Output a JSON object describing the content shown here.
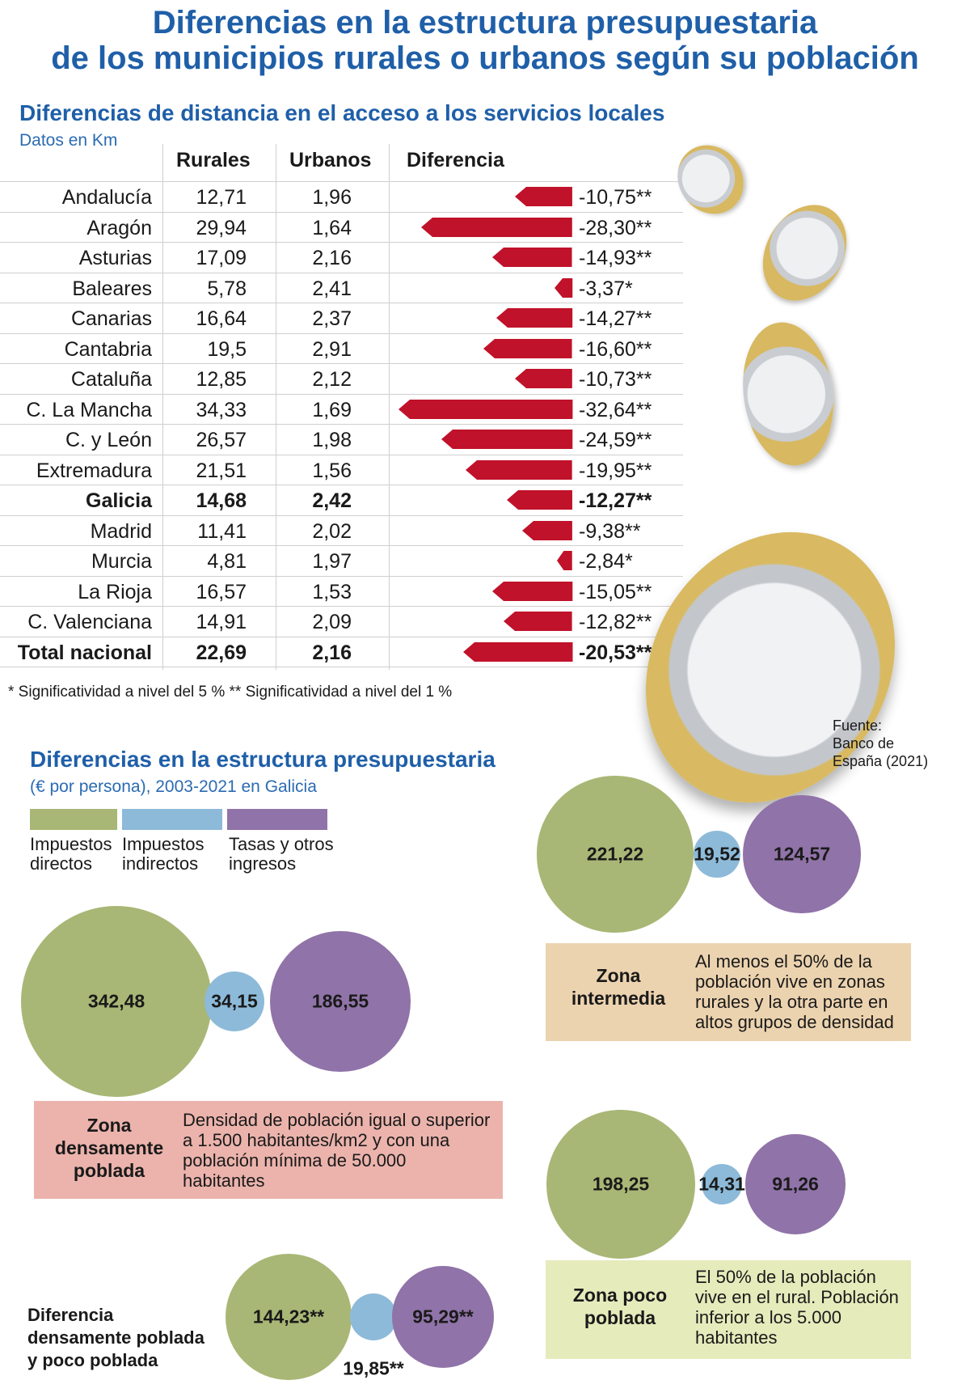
{
  "title_line1": "Diferencias en la estructura presupuestaria",
  "title_line2": "de los municipios rurales o urbanos según su población",
  "section1": {
    "title": "Diferencias de distancia en el acceso a los servicios locales",
    "subtitle": "Datos en Km",
    "col_rurales": "Rurales",
    "col_urbanos": "Urbanos",
    "col_diferencia": "Diferencia",
    "note": "* Significatividad a nivel del 5 %  ** Significatividad a nivel del  1 %"
  },
  "source": "Fuente:\nBanco de\nEspaña (2021)",
  "section2": {
    "title": "Diferencias en la estructura presupuestaria",
    "subtitle": "(€ por persona), 2003-2021 en Galicia",
    "legend": [
      {
        "label": "Impuestos\ndirectos",
        "color": "#a8b775"
      },
      {
        "label": "Impuestos\nindirectos",
        "color": "#8dbad9"
      },
      {
        "label": "Tasas y otros\ningresos",
        "color": "#9073a8"
      }
    ]
  },
  "zones": {
    "densa": {
      "label": "Zona\ndensamente\npoblada",
      "desc": "Densidad de población igual o superior\na 1.500 habitantes/km2 y con una\npoblación mínima de 50.000\nhabitantes"
    },
    "intermedia": {
      "label": "Zona\nintermedia",
      "desc": "Al menos el 50% de la\npoblación vive en zonas\nrurales y la otra parte en\naltos grupos de densidad"
    },
    "poco": {
      "label": "Zona poco\npoblada",
      "desc": "El 50% de la población\nvive en el rural. Población\ninferior a los 5.000\nhabitantes"
    },
    "diferencia": {
      "label": "Diferencia\ndensamente poblada\ny poco poblada"
    }
  },
  "colors": {
    "title_blue": "#1f5fa8",
    "bar_red": "#c0122a",
    "olive": "#a8b775",
    "lightblue": "#8dbad9",
    "purple": "#9073a8",
    "box_pink": "#ebb3ac",
    "box_tan": "#ecd3af",
    "box_lime": "#e6ebbb"
  },
  "chart_data": [
    {
      "type": "table",
      "title": "Diferencias de distancia en el acceso a los servicios locales",
      "unit": "Km",
      "columns": [
        "Rurales",
        "Urbanos",
        "Diferencia"
      ],
      "rows": [
        {
          "region": "Andalucía",
          "rurales": "12,71",
          "urbanos": "1,96",
          "diferencia": "-10,75**",
          "value": -10.75
        },
        {
          "region": "Aragón",
          "rurales": "29,94",
          "urbanos": "1,64",
          "diferencia": "-28,30**",
          "value": -28.3
        },
        {
          "region": "Asturias",
          "rurales": "17,09",
          "urbanos": "2,16",
          "diferencia": "-14,93**",
          "value": -14.93
        },
        {
          "region": "Baleares",
          "rurales": "5,78",
          "urbanos": "2,41",
          "diferencia": "-3,37*",
          "value": -3.37
        },
        {
          "region": "Canarias",
          "rurales": "16,64",
          "urbanos": "2,37",
          "diferencia": "-14,27**",
          "value": -14.27
        },
        {
          "region": "Cantabria",
          "rurales": "19,5",
          "urbanos": "2,91",
          "diferencia": "-16,60**",
          "value": -16.6
        },
        {
          "region": "Cataluña",
          "rurales": "12,85",
          "urbanos": "2,12",
          "diferencia": "-10,73**",
          "value": -10.73
        },
        {
          "region": "C. La Mancha",
          "rurales": "34,33",
          "urbanos": "1,69",
          "diferencia": "-32,64**",
          "value": -32.64
        },
        {
          "region": "C.  y León",
          "rurales": "26,57",
          "urbanos": "1,98",
          "diferencia": "-24,59**",
          "value": -24.59
        },
        {
          "region": "Extremadura",
          "rurales": "21,51",
          "urbanos": "1,56",
          "diferencia": "-19,95**",
          "value": -19.95
        },
        {
          "region": "Galicia",
          "rurales": "14,68",
          "urbanos": "2,42",
          "diferencia": "-12,27**",
          "value": -12.27,
          "bold": true
        },
        {
          "region": "Madrid",
          "rurales": "11,41",
          "urbanos": "2,02",
          "diferencia": "-9,38**",
          "value": -9.38
        },
        {
          "region": "Murcia",
          "rurales": "4,81",
          "urbanos": "1,97",
          "diferencia": "-2,84*",
          "value": -2.84
        },
        {
          "region": "La Rioja",
          "rurales": "16,57",
          "urbanos": "1,53",
          "diferencia": "-15,05**",
          "value": -15.05
        },
        {
          "region": "C. Valenciana",
          "rurales": "14,91",
          "urbanos": "2,09",
          "diferencia": "-12,82**",
          "value": -12.82
        },
        {
          "region": "Total nacional",
          "rurales": "22,69",
          "urbanos": "2,16",
          "diferencia": "-20,53**",
          "value": -20.53,
          "bold": true
        }
      ]
    },
    {
      "type": "bubble",
      "title": "Diferencias en la estructura presupuestaria",
      "series_names": [
        "Impuestos directos",
        "Impuestos indirectos",
        "Tasas y otros ingresos"
      ],
      "groups": [
        {
          "zone": "Zona densamente poblada",
          "labels": [
            "342,48",
            "34,15",
            "186,55"
          ],
          "values": [
            342.48,
            34.15,
            186.55
          ]
        },
        {
          "zone": "Zona intermedia",
          "labels": [
            "221,22",
            "19,52",
            "124,57"
          ],
          "values": [
            221.22,
            19.52,
            124.57
          ]
        },
        {
          "zone": "Zona poco poblada",
          "labels": [
            "198,25",
            "14,31",
            "91,26"
          ],
          "values": [
            198.25,
            14.31,
            91.26
          ]
        },
        {
          "zone": "Diferencia densamente poblada y poco poblada",
          "labels": [
            "144,23**",
            "19,85**",
            "95,29**"
          ],
          "values": [
            144.23,
            19.85,
            95.29
          ]
        }
      ]
    }
  ]
}
